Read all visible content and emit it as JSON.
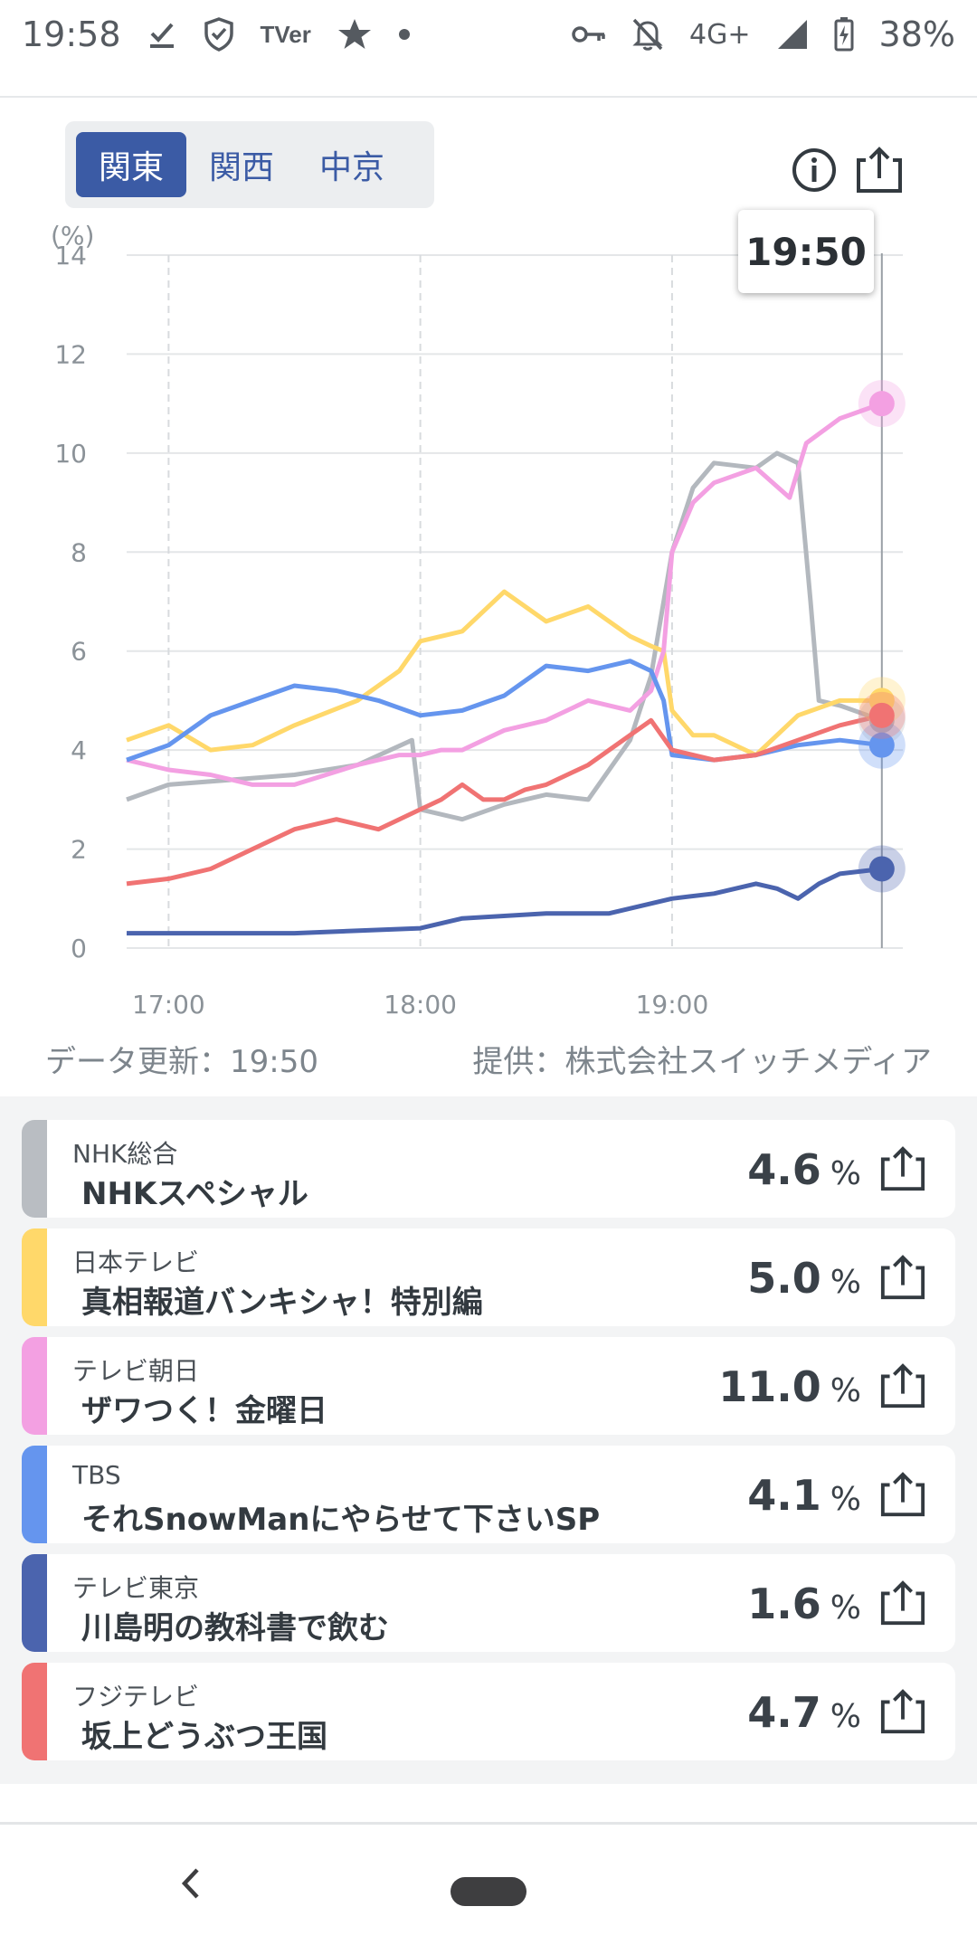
{
  "status_bar": {
    "time": "19:58",
    "left_icons": [
      "download-done-icon",
      "shield-icon",
      "tver-icon",
      "star-icon",
      "dot-icon"
    ],
    "tver_label": "TVer",
    "right_icons": [
      "key-icon",
      "bell-off-icon",
      "network-icon",
      "signal-icon",
      "battery-charging-icon"
    ],
    "network": "4G+",
    "battery": "38%"
  },
  "region_tabs": [
    {
      "label": "関東",
      "active": true
    },
    {
      "label": "関西",
      "active": false
    },
    {
      "label": "中京",
      "active": false
    }
  ],
  "toolbar": {
    "info_icon": "info-icon",
    "share_icon": "share-icon"
  },
  "chart_data": {
    "type": "line",
    "ylabel": "(%)",
    "y_ticks": [
      "14",
      "12",
      "10",
      "8",
      "6",
      "4",
      "2",
      "0"
    ],
    "ylim": [
      0,
      14
    ],
    "x_ticks": [
      "17:00",
      "18:00",
      "19:00"
    ],
    "xlim": [
      "16:50",
      "19:55"
    ],
    "grid": true,
    "tooltip_time": "19:50",
    "series": [
      {
        "name": "NHK総合",
        "color": "#b3b8be",
        "x": [
          "16:50",
          "17:00",
          "17:15",
          "17:30",
          "17:45",
          "17:58",
          "18:00",
          "18:10",
          "18:20",
          "18:30",
          "18:40",
          "18:50",
          "18:55",
          "19:00",
          "19:05",
          "19:10",
          "19:20",
          "19:25",
          "19:30",
          "19:33",
          "19:35",
          "19:40",
          "19:50"
        ],
        "y": [
          3.0,
          3.3,
          3.4,
          3.5,
          3.7,
          4.2,
          2.8,
          2.6,
          2.9,
          3.1,
          3.0,
          4.2,
          5.5,
          8.0,
          9.3,
          9.8,
          9.7,
          10.0,
          9.8,
          7.0,
          5.0,
          4.9,
          4.6
        ]
      },
      {
        "name": "日本テレビ",
        "color": "#ffd86a",
        "x": [
          "16:50",
          "17:00",
          "17:10",
          "17:20",
          "17:30",
          "17:45",
          "17:55",
          "18:00",
          "18:10",
          "18:20",
          "18:30",
          "18:40",
          "18:50",
          "18:55",
          "18:58",
          "19:00",
          "19:05",
          "19:10",
          "19:20",
          "19:30",
          "19:40",
          "19:50"
        ],
        "y": [
          4.2,
          4.5,
          4.0,
          4.1,
          4.5,
          5.0,
          5.6,
          6.2,
          6.4,
          7.2,
          6.6,
          6.9,
          6.3,
          6.1,
          6.0,
          4.8,
          4.3,
          4.3,
          3.9,
          4.7,
          5.0,
          5.0
        ]
      },
      {
        "name": "テレビ朝日",
        "color": "#f3a0e2",
        "x": [
          "16:50",
          "17:00",
          "17:10",
          "17:20",
          "17:30",
          "17:45",
          "17:55",
          "18:00",
          "18:05",
          "18:10",
          "18:20",
          "18:30",
          "18:40",
          "18:50",
          "18:55",
          "18:58",
          "19:00",
          "19:05",
          "19:10",
          "19:20",
          "19:28",
          "19:32",
          "19:40",
          "19:50"
        ],
        "y": [
          3.8,
          3.6,
          3.5,
          3.3,
          3.3,
          3.7,
          3.9,
          3.9,
          4.0,
          4.0,
          4.4,
          4.6,
          5.0,
          4.8,
          5.2,
          6.0,
          8.0,
          9.0,
          9.4,
          9.7,
          9.1,
          10.2,
          10.7,
          11.0
        ]
      },
      {
        "name": "TBS",
        "color": "#6595ee",
        "x": [
          "16:50",
          "17:00",
          "17:10",
          "17:20",
          "17:30",
          "17:40",
          "17:50",
          "18:00",
          "18:10",
          "18:20",
          "18:30",
          "18:40",
          "18:50",
          "18:55",
          "18:58",
          "19:00",
          "19:10",
          "19:20",
          "19:30",
          "19:40",
          "19:50"
        ],
        "y": [
          3.8,
          4.1,
          4.7,
          5.0,
          5.3,
          5.2,
          5.0,
          4.7,
          4.8,
          5.1,
          5.7,
          5.6,
          5.8,
          5.6,
          5.0,
          3.9,
          3.8,
          3.9,
          4.1,
          4.2,
          4.1
        ]
      },
      {
        "name": "テレビ東京",
        "color": "#4b64ae",
        "x": [
          "16:50",
          "17:00",
          "17:30",
          "18:00",
          "18:10",
          "18:30",
          "18:45",
          "19:00",
          "19:10",
          "19:20",
          "19:25",
          "19:30",
          "19:35",
          "19:40",
          "19:50"
        ],
        "y": [
          0.3,
          0.3,
          0.3,
          0.4,
          0.6,
          0.7,
          0.7,
          1.0,
          1.1,
          1.3,
          1.2,
          1.0,
          1.3,
          1.5,
          1.6
        ]
      },
      {
        "name": "フジテレビ",
        "color": "#f07373",
        "x": [
          "16:50",
          "17:00",
          "17:10",
          "17:20",
          "17:30",
          "17:40",
          "17:50",
          "18:00",
          "18:05",
          "18:10",
          "18:15",
          "18:20",
          "18:25",
          "18:30",
          "18:40",
          "18:50",
          "18:55",
          "19:00",
          "19:10",
          "19:20",
          "19:30",
          "19:40",
          "19:50"
        ],
        "y": [
          1.3,
          1.4,
          1.6,
          2.0,
          2.4,
          2.6,
          2.4,
          2.8,
          3.0,
          3.3,
          3.0,
          3.0,
          3.2,
          3.3,
          3.7,
          4.3,
          4.6,
          4.0,
          3.8,
          3.9,
          4.2,
          4.5,
          4.7
        ]
      }
    ]
  },
  "footer_meta": {
    "updated": "データ更新：19:50",
    "provider": "提供：株式会社スイッチメディア"
  },
  "channels": [
    {
      "channel": "NHK総合",
      "program": "NHKスペシャル",
      "rating": "4.6",
      "unit": "%",
      "color": "#b9bdc2"
    },
    {
      "channel": "日本テレビ",
      "program": "真相報道バンキシャ！特別編",
      "rating": "5.0",
      "unit": "%",
      "color": "#ffd86a"
    },
    {
      "channel": "テレビ朝日",
      "program": "ザワつく！金曜日",
      "rating": "11.0",
      "unit": "%",
      "color": "#f3a0e2"
    },
    {
      "channel": "TBS",
      "program": "それSnowManにやらせて下さいSP",
      "rating": "4.1",
      "unit": "%",
      "color": "#6595ee"
    },
    {
      "channel": "テレビ東京",
      "program": "川島明の教科書で飲む",
      "rating": "1.6",
      "unit": "%",
      "color": "#4b64ae"
    },
    {
      "channel": "フジテレビ",
      "program": "坂上どうぶつ王国",
      "rating": "4.7",
      "unit": "%",
      "color": "#f07373"
    }
  ],
  "nav": {
    "back_icon": "back-icon",
    "home_icon": "home-pill-icon"
  }
}
